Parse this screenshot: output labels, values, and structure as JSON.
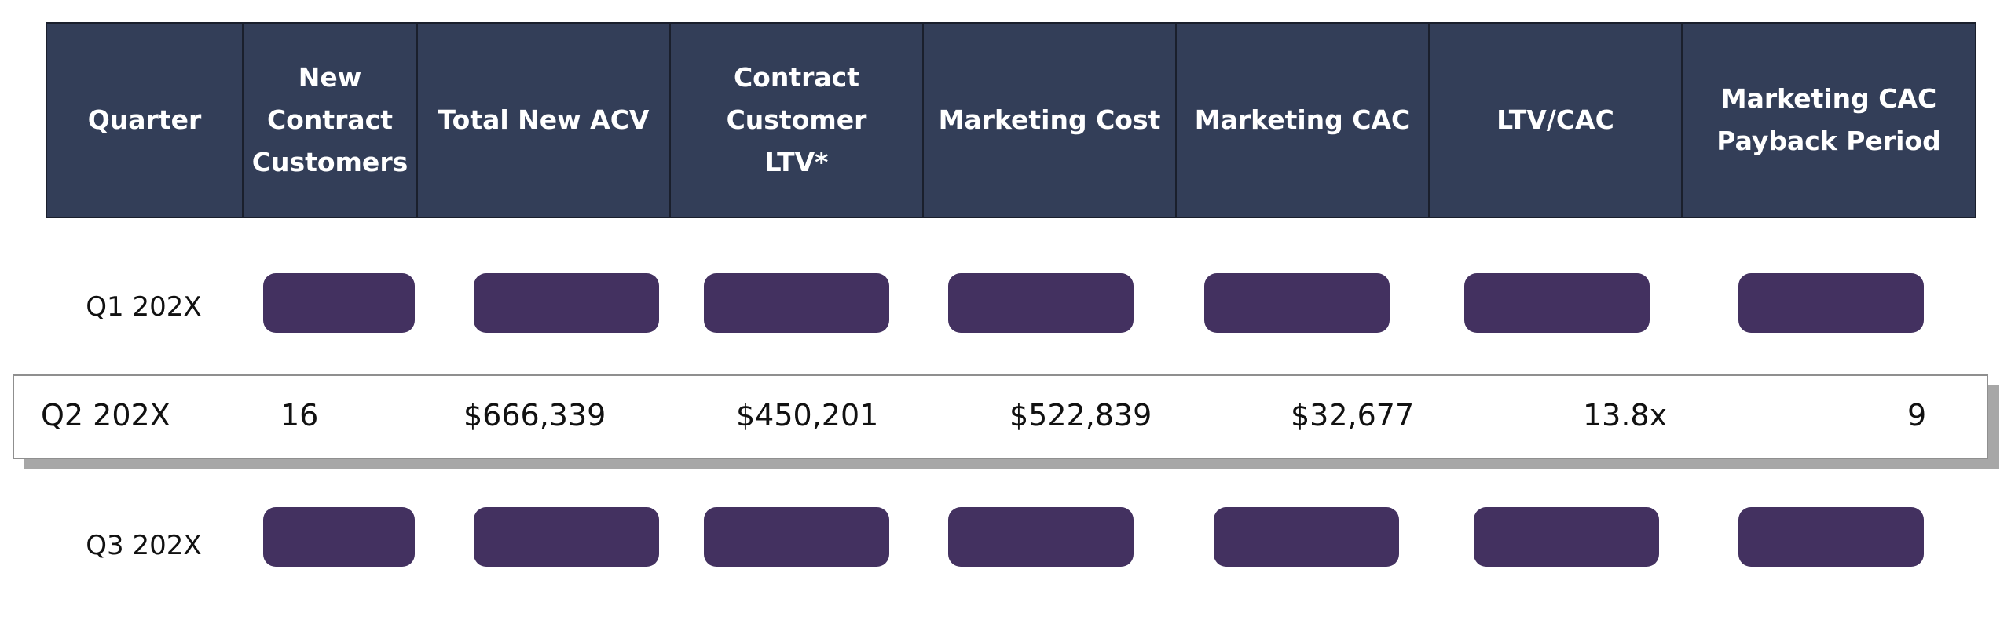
{
  "table": {
    "headers": [
      "Quarter",
      "New\nContract\nCustomers",
      "Total New ACV",
      "Contract Customer\nLTV*",
      "Marketing Cost",
      "Marketing CAC",
      "LTV/CAC",
      "Marketing CAC\nPayback Period"
    ],
    "rows": [
      {
        "quarter": "Q1 202X",
        "redacted": true
      },
      {
        "quarter": "Q2 202X",
        "new_contract_customers": "16",
        "total_new_acv": "$666,339",
        "contract_customer_ltv": "$450,201",
        "marketing_cost": "$522,839",
        "marketing_cac": "$32,677",
        "ltv_cac": "13.8x",
        "payback_period": "9"
      },
      {
        "quarter": "Q3 202X",
        "redacted": true
      }
    ]
  },
  "colors": {
    "header_background": "#333e58",
    "redaction_pill": "#433160",
    "highlight_border": "#8f8f8f",
    "highlight_shadow": "#a7a7a7"
  }
}
